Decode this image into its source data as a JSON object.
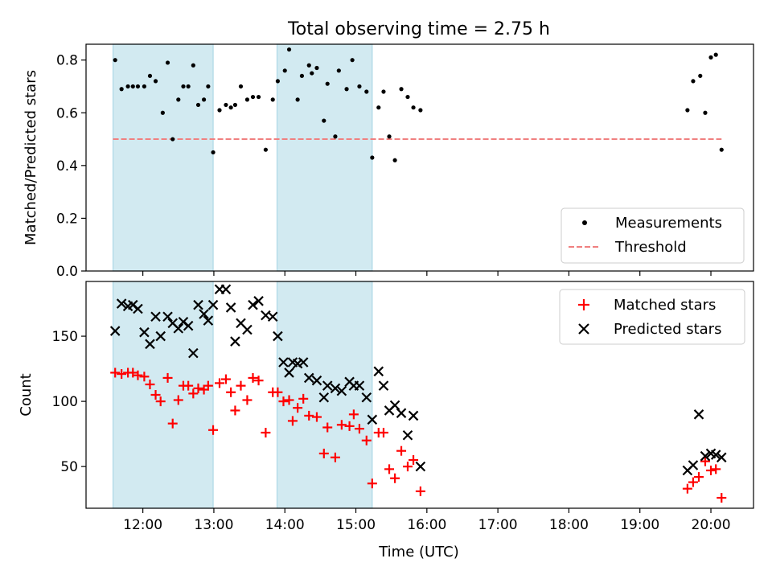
{
  "figure": {
    "title": "Total observing time = 2.75 h"
  },
  "chart_data": [
    {
      "type": "scatter",
      "panel": "top",
      "title": "Total observing time = 2.75 h",
      "xlabel": "",
      "ylabel": "Matched/Predicted stars",
      "x_unit": "hours UTC",
      "xlim": [
        11.2,
        20.6
      ],
      "ylim": [
        0.0,
        0.86
      ],
      "xticks": [
        12,
        13,
        14,
        15,
        16,
        17,
        18,
        19,
        20
      ],
      "xtick_labels_shown": false,
      "yticks": [
        0.0,
        0.2,
        0.4,
        0.6,
        0.8
      ],
      "ytick_labels": [
        "0.0",
        "0.2",
        "0.4",
        "0.6",
        "0.8"
      ],
      "shaded_intervals": [
        [
          11.58,
          12.99
        ],
        [
          13.89,
          15.23
        ]
      ],
      "shade_color": "#add8e6",
      "legend_position": "lower right",
      "legend": [
        {
          "label": "Measurements",
          "marker": "dot",
          "color": "#000000"
        },
        {
          "label": "Threshold",
          "marker": "dashed-line",
          "color": "#f08080"
        }
      ],
      "threshold": {
        "name": "Threshold",
        "y": 0.5,
        "x_range": [
          11.58,
          20.15
        ],
        "color": "#f08080"
      },
      "series": [
        {
          "name": "Measurements",
          "color": "#000000",
          "x": [
            11.61,
            11.7,
            11.79,
            11.86,
            11.93,
            12.02,
            12.1,
            12.18,
            12.28,
            12.35,
            12.42,
            12.5,
            12.57,
            12.64,
            12.71,
            12.78,
            12.86,
            12.92,
            12.99,
            13.08,
            13.17,
            13.24,
            13.3,
            13.38,
            13.47,
            13.55,
            13.63,
            13.73,
            13.83,
            13.9,
            14.0,
            14.06,
            14.18,
            14.24,
            14.34,
            14.38,
            14.45,
            14.55,
            14.6,
            14.71,
            14.76,
            14.87,
            14.95,
            15.05,
            15.15,
            15.23,
            15.32,
            15.39,
            15.47,
            15.55,
            15.64,
            15.73,
            15.81,
            15.91,
            19.67,
            19.75,
            19.85,
            19.92,
            20.0,
            20.07,
            20.15
          ],
          "y": [
            0.8,
            0.69,
            0.7,
            0.7,
            0.7,
            0.7,
            0.74,
            0.72,
            0.6,
            0.79,
            0.5,
            0.65,
            0.7,
            0.7,
            0.78,
            0.63,
            0.65,
            0.7,
            0.45,
            0.61,
            0.63,
            0.62,
            0.63,
            0.7,
            0.65,
            0.66,
            0.66,
            0.46,
            0.65,
            0.72,
            0.76,
            0.84,
            0.65,
            0.74,
            0.78,
            0.75,
            0.77,
            0.57,
            0.71,
            0.51,
            0.76,
            0.69,
            0.8,
            0.7,
            0.68,
            0.43,
            0.62,
            0.68,
            0.51,
            0.42,
            0.69,
            0.66,
            0.62,
            0.61,
            0.61,
            0.72,
            0.74,
            0.6,
            0.81,
            0.82,
            0.46
          ]
        }
      ]
    },
    {
      "type": "scatter",
      "panel": "bottom",
      "xlabel": "Time (UTC)",
      "ylabel": "Count",
      "x_unit": "hours UTC",
      "xlim": [
        11.2,
        20.6
      ],
      "ylim": [
        18,
        192
      ],
      "xticks": [
        12,
        13,
        14,
        15,
        16,
        17,
        18,
        19,
        20
      ],
      "xtick_labels": [
        "12:00",
        "13:00",
        "14:00",
        "15:00",
        "16:00",
        "17:00",
        "18:00",
        "19:00",
        "20:00"
      ],
      "yticks": [
        50,
        100,
        150
      ],
      "ytick_labels": [
        "50",
        "100",
        "150"
      ],
      "shaded_intervals": [
        [
          11.58,
          12.99
        ],
        [
          13.89,
          15.23
        ]
      ],
      "shade_color": "#add8e6",
      "legend_position": "upper right",
      "legend": [
        {
          "label": "Matched stars",
          "marker": "plus",
          "color": "#ff0000"
        },
        {
          "label": "Predicted stars",
          "marker": "x",
          "color": "#000000"
        }
      ],
      "series": [
        {
          "name": "Matched stars",
          "color": "#ff0000",
          "marker": "plus",
          "x": [
            11.61,
            11.7,
            11.79,
            11.86,
            11.93,
            12.02,
            12.1,
            12.18,
            12.25,
            12.35,
            12.42,
            12.5,
            12.57,
            12.64,
            12.71,
            12.78,
            12.86,
            12.92,
            12.99,
            13.08,
            13.17,
            13.24,
            13.3,
            13.38,
            13.47,
            13.55,
            13.63,
            13.73,
            13.83,
            13.9,
            13.98,
            14.06,
            14.11,
            14.18,
            14.26,
            14.34,
            14.45,
            14.55,
            14.6,
            14.71,
            14.8,
            14.91,
            14.97,
            15.05,
            15.15,
            15.23,
            15.32,
            15.39,
            15.47,
            15.55,
            15.64,
            15.73,
            15.81,
            15.91,
            19.67,
            19.75,
            19.83,
            19.92,
            20.0,
            20.07,
            20.15
          ],
          "y": [
            122,
            121,
            122,
            122,
            120,
            119,
            113,
            105,
            100,
            118,
            83,
            101,
            112,
            112,
            106,
            110,
            109,
            112,
            78,
            114,
            117,
            107,
            93,
            112,
            101,
            118,
            116,
            76,
            107,
            107,
            100,
            101,
            85,
            95,
            102,
            89,
            88,
            60,
            80,
            57,
            82,
            81,
            90,
            79,
            70,
            37,
            76,
            76,
            48,
            41,
            62,
            50,
            55,
            31,
            33,
            38,
            42,
            54,
            47,
            48,
            26
          ]
        },
        {
          "name": "Predicted stars",
          "color": "#000000",
          "marker": "x",
          "x": [
            11.61,
            11.7,
            11.79,
            11.86,
            11.93,
            12.02,
            12.1,
            12.18,
            12.25,
            12.35,
            12.42,
            12.5,
            12.57,
            12.64,
            12.71,
            12.78,
            12.86,
            12.92,
            12.99,
            13.08,
            13.17,
            13.24,
            13.3,
            13.38,
            13.47,
            13.55,
            13.63,
            13.73,
            13.83,
            13.9,
            13.98,
            14.06,
            14.11,
            14.18,
            14.26,
            14.34,
            14.45,
            14.55,
            14.6,
            14.71,
            14.8,
            14.91,
            14.97,
            15.05,
            15.15,
            15.23,
            15.32,
            15.39,
            15.47,
            15.55,
            15.64,
            15.73,
            15.81,
            15.91,
            19.67,
            19.75,
            19.83,
            19.92,
            20.0,
            20.07,
            20.15
          ],
          "y": [
            154,
            175,
            173,
            174,
            171,
            153,
            144,
            165,
            150,
            165,
            160,
            156,
            161,
            158,
            137,
            174,
            167,
            162,
            174,
            186,
            186,
            172,
            146,
            160,
            155,
            174,
            177,
            166,
            165,
            150,
            130,
            122,
            130,
            129,
            130,
            118,
            116,
            103,
            112,
            110,
            108,
            115,
            112,
            112,
            103,
            86,
            123,
            112,
            93,
            97,
            91,
            74,
            89,
            50,
            47,
            51,
            90,
            58,
            60,
            59,
            57
          ]
        }
      ]
    }
  ]
}
